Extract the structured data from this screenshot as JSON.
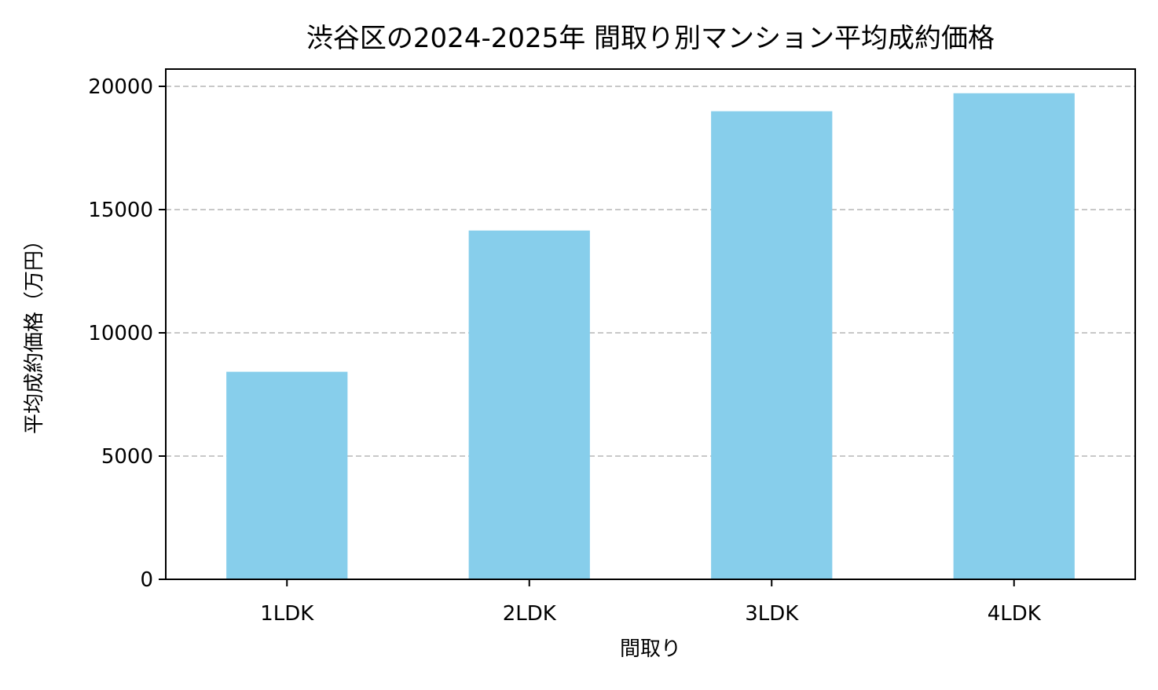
{
  "chart_data": {
    "type": "bar",
    "title": "渋谷区の2024-2025年 間取り別マンション平均成約価格",
    "xlabel": "間取り",
    "ylabel": "平均成約価格（万円）",
    "categories": [
      "1LDK",
      "2LDK",
      "3LDK",
      "4LDK"
    ],
    "values": [
      8420,
      14150,
      18990,
      19720
    ],
    "ylim": [
      0,
      20700
    ],
    "yticks": [
      0,
      5000,
      10000,
      15000,
      20000
    ],
    "grid": "y, dashed",
    "bar_color": "#87CEEB",
    "grid_color": "#c8c8c8"
  }
}
